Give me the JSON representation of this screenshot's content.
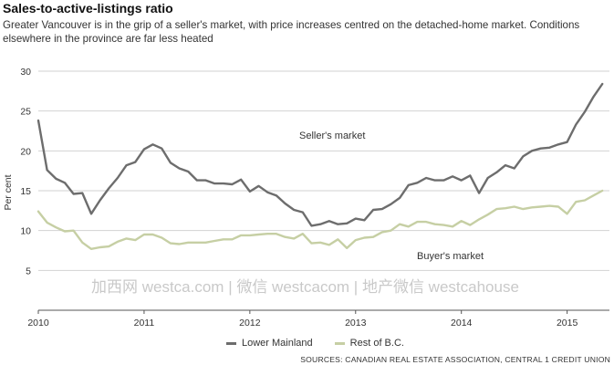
{
  "title": "Sales-to-active-listings ratio",
  "subtitle": "Greater Vancouver is in the grip of a seller's market, with price increases centred on the detached-home market. Conditions elsewhere in the province are far less heated",
  "watermark": "加西网 westca.com | 微信 westcacom | 地产微信 westcahouse",
  "source": "SOURCES: CANADIAN REAL ESTATE ASSOCIATION, CENTRAL 1 CREDIT UNION",
  "colors": {
    "lower_mainland": "#6d6d6d",
    "rest_of_bc": "#c6cfa4"
  },
  "chart_data": {
    "type": "line",
    "ylabel": "Per cent",
    "ylim": [
      0,
      30
    ],
    "yticks": [
      5,
      10,
      15,
      20,
      25,
      30
    ],
    "xlim": [
      2010,
      2015.4
    ],
    "xticks": [
      "2010",
      "2011",
      "2012",
      "2013",
      "2014",
      "2015"
    ],
    "grid": true,
    "annotations": [
      "Seller's market",
      "Buyer's market"
    ],
    "series": [
      {
        "name": "Lower Mainland",
        "x": [
          2010.0,
          2010.083,
          2010.167,
          2010.25,
          2010.333,
          2010.417,
          2010.5,
          2010.583,
          2010.667,
          2010.75,
          2010.833,
          2010.917,
          2011.0,
          2011.083,
          2011.167,
          2011.25,
          2011.333,
          2011.417,
          2011.5,
          2011.583,
          2011.667,
          2011.75,
          2011.833,
          2011.917,
          2012.0,
          2012.083,
          2012.167,
          2012.25,
          2012.333,
          2012.417,
          2012.5,
          2012.583,
          2012.667,
          2012.75,
          2012.833,
          2012.917,
          2013.0,
          2013.083,
          2013.167,
          2013.25,
          2013.333,
          2013.417,
          2013.5,
          2013.583,
          2013.667,
          2013.75,
          2013.833,
          2013.917,
          2014.0,
          2014.083,
          2014.167,
          2014.25,
          2014.333,
          2014.417,
          2014.5,
          2014.583,
          2014.667,
          2014.75,
          2014.833,
          2014.917,
          2015.0,
          2015.083,
          2015.167,
          2015.25,
          2015.333
        ],
        "values": [
          23.8,
          17.6,
          16.5,
          16.0,
          14.6,
          14.7,
          12.1,
          13.8,
          15.3,
          16.6,
          18.2,
          18.6,
          20.2,
          20.8,
          20.3,
          18.5,
          17.8,
          17.4,
          16.3,
          16.3,
          15.9,
          15.9,
          15.8,
          16.4,
          14.9,
          15.6,
          14.8,
          14.4,
          13.4,
          12.6,
          12.3,
          10.6,
          10.8,
          11.2,
          10.8,
          10.9,
          11.5,
          11.3,
          12.6,
          12.7,
          13.3,
          14.1,
          15.7,
          16.0,
          16.6,
          16.3,
          16.3,
          16.8,
          16.3,
          16.9,
          14.7,
          16.6,
          17.3,
          18.2,
          17.8,
          19.3,
          20.0,
          20.3,
          20.4,
          20.8,
          21.1,
          23.3,
          24.9,
          26.8,
          28.4
        ]
      },
      {
        "name": "Rest of B.C.",
        "x": [
          2010.0,
          2010.083,
          2010.167,
          2010.25,
          2010.333,
          2010.417,
          2010.5,
          2010.583,
          2010.667,
          2010.75,
          2010.833,
          2010.917,
          2011.0,
          2011.083,
          2011.167,
          2011.25,
          2011.333,
          2011.417,
          2011.5,
          2011.583,
          2011.667,
          2011.75,
          2011.833,
          2011.917,
          2012.0,
          2012.083,
          2012.167,
          2012.25,
          2012.333,
          2012.417,
          2012.5,
          2012.583,
          2012.667,
          2012.75,
          2012.833,
          2012.917,
          2013.0,
          2013.083,
          2013.167,
          2013.25,
          2013.333,
          2013.417,
          2013.5,
          2013.583,
          2013.667,
          2013.75,
          2013.833,
          2013.917,
          2014.0,
          2014.083,
          2014.167,
          2014.25,
          2014.333,
          2014.417,
          2014.5,
          2014.583,
          2014.667,
          2014.75,
          2014.833,
          2014.917,
          2015.0,
          2015.083,
          2015.167,
          2015.25,
          2015.333
        ],
        "values": [
          12.4,
          11.0,
          10.4,
          9.9,
          10.0,
          8.5,
          7.7,
          7.9,
          8.0,
          8.6,
          9.0,
          8.8,
          9.5,
          9.5,
          9.1,
          8.4,
          8.3,
          8.5,
          8.5,
          8.5,
          8.7,
          8.9,
          8.9,
          9.4,
          9.4,
          9.5,
          9.6,
          9.6,
          9.2,
          9.0,
          9.6,
          8.4,
          8.5,
          8.2,
          8.9,
          7.8,
          8.8,
          9.1,
          9.2,
          9.8,
          10.0,
          10.8,
          10.5,
          11.1,
          11.1,
          10.8,
          10.7,
          10.5,
          11.2,
          10.7,
          11.4,
          12.0,
          12.7,
          12.8,
          13.0,
          12.7,
          12.9,
          13.0,
          13.1,
          13.0,
          12.1,
          13.6,
          13.8,
          14.4,
          15.0
        ]
      }
    ]
  }
}
